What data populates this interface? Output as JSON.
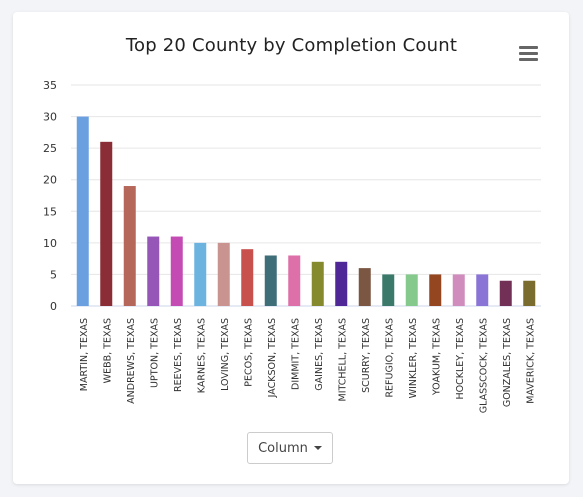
{
  "chart_data": {
    "type": "bar",
    "title": "Top 20 County by Completion Count",
    "xlabel": "",
    "ylabel": "",
    "ylim": [
      0,
      35
    ],
    "yticks": [
      0,
      5,
      10,
      15,
      20,
      25,
      30,
      35
    ],
    "grid": true,
    "legend": "none",
    "categories": [
      "MARTIN, TEXAS",
      "WEBB, TEXAS",
      "ANDREWS, TEXAS",
      "UPTON, TEXAS",
      "REEVES, TEXAS",
      "KARNES, TEXAS",
      "LOVING, TEXAS",
      "PECOS, TEXAS",
      "JACKSON, TEXAS",
      "DIMMIT, TEXAS",
      "GAINES, TEXAS",
      "MITCHELL, TEXAS",
      "SCURRY, TEXAS",
      "REFUGIO, TEXAS",
      "WINKLER, TEXAS",
      "YOAKUM, TEXAS",
      "HOCKLEY, TEXAS",
      "GLASSCOCK, TEXAS",
      "GONZALES, TEXAS",
      "MAVERICK, TEXAS"
    ],
    "values": [
      30,
      26,
      19,
      11,
      11,
      10,
      10,
      9,
      8,
      8,
      7,
      7,
      6,
      5,
      5,
      5,
      5,
      5,
      4,
      4
    ],
    "colors": [
      "#6a9fe0",
      "#8b2d37",
      "#b5675a",
      "#9556b8",
      "#c44bb3",
      "#6cb3e0",
      "#c99490",
      "#c8504d",
      "#3e6e78",
      "#dd6fa9",
      "#868a2f",
      "#4f2796",
      "#7a5643",
      "#3b7a6b",
      "#86c98d",
      "#93461f",
      "#cf8cbd",
      "#8a74d6",
      "#723057",
      "#7a6b2e"
    ]
  },
  "controls": {
    "chart_type_label": "Column",
    "menu_icon": "hamburger-menu-icon"
  }
}
